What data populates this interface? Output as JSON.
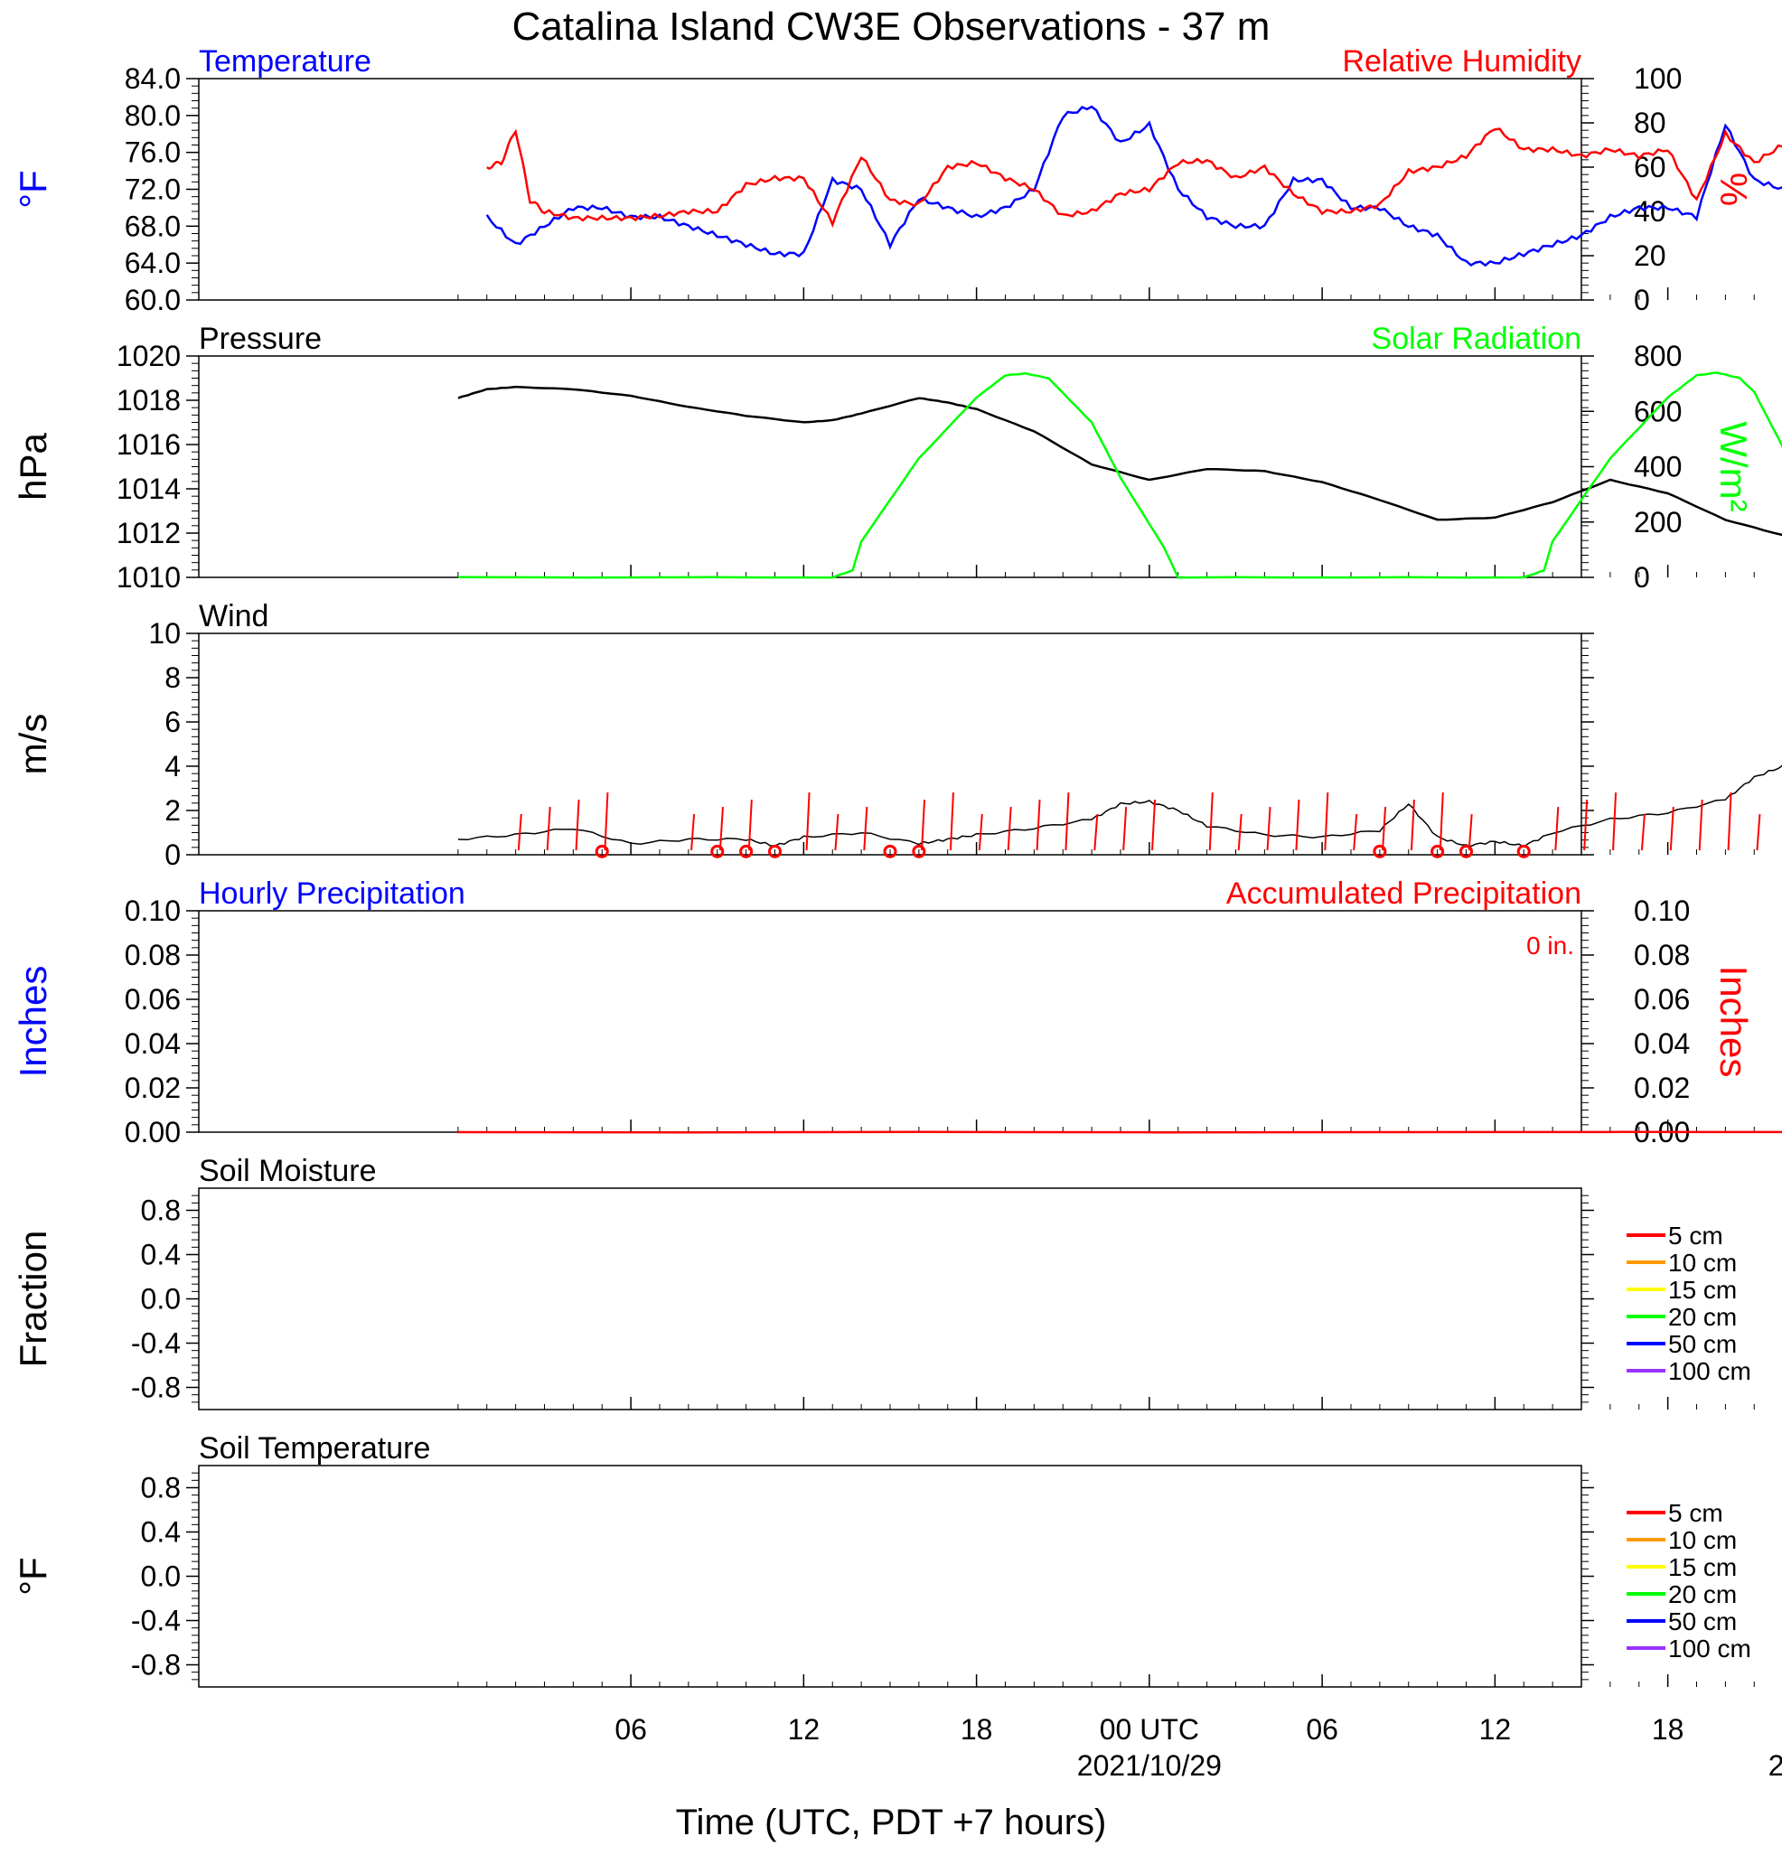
{
  "title": "Catalina Island CW3E Observations - 37 m",
  "x_axis": {
    "title": "Time (UTC, PDT +7 hours)",
    "range_hours": [
      -9,
      39
    ],
    "ticks": [
      {
        "h": 6,
        "label": "06",
        "date": ""
      },
      {
        "h": 12,
        "label": "12",
        "date": ""
      },
      {
        "h": 18,
        "label": "18",
        "date": ""
      },
      {
        "h": 24,
        "label": "00 UTC",
        "date": "2021/10/29"
      },
      {
        "h": 30,
        "label": "06",
        "date": ""
      },
      {
        "h": 36,
        "label": "12",
        "date": ""
      },
      {
        "h": 42,
        "label": "18",
        "date": ""
      },
      {
        "h": 48,
        "label": "00 UTC",
        "date": "2021/10/30"
      }
    ]
  },
  "colors": {
    "blue": "#0000ff",
    "red": "#ff0000",
    "green": "#00ff00",
    "black": "#000000"
  },
  "soil_legend": [
    {
      "label": "5 cm",
      "color": "#ff0000"
    },
    {
      "label": "10 cm",
      "color": "#ff9900"
    },
    {
      "label": "15 cm",
      "color": "#ffff00"
    },
    {
      "label": "20 cm",
      "color": "#00ff00"
    },
    {
      "label": "50 cm",
      "color": "#0000ff"
    },
    {
      "label": "100 cm",
      "color": "#9933ff"
    }
  ],
  "chart_data": [
    {
      "type": "line",
      "title_left": "Temperature",
      "title_right": "Relative Humidity",
      "ylabel_left": "°F",
      "ylabel_right": "%",
      "ylim_left": [
        60,
        84
      ],
      "ylim_right": [
        0,
        100
      ],
      "yticks_left": [
        "60.0",
        "64.0",
        "68.0",
        "72.0",
        "76.0",
        "80.0",
        "84.0"
      ],
      "yticks_right": [
        "0",
        "20",
        "40",
        "60",
        "80",
        "100"
      ],
      "series": [
        {
          "axis": "left",
          "color": "#0000ff",
          "x": [
            1,
            2,
            3,
            4,
            5,
            6,
            7,
            8,
            9,
            10,
            11,
            12,
            13,
            14,
            15,
            16,
            17,
            18,
            19,
            20,
            21,
            22,
            23,
            24,
            25,
            26,
            27,
            28,
            29,
            30,
            31,
            32,
            33,
            34,
            35,
            36,
            37,
            38,
            39,
            40,
            41,
            42,
            43,
            44,
            45,
            46,
            47,
            48,
            48.5
          ],
          "y": [
            69,
            66,
            68,
            70,
            70,
            69,
            69,
            68,
            67,
            66,
            65,
            65,
            73,
            72,
            66,
            71,
            70,
            69,
            70,
            72,
            80,
            81,
            77,
            79,
            72,
            69,
            68,
            68,
            73,
            73,
            70,
            70,
            68,
            67,
            64,
            64,
            65,
            66,
            67,
            69,
            70,
            70,
            69,
            79,
            73,
            72,
            68,
            67,
            62
          ]
        },
        {
          "axis": "right",
          "color": "#ff0000",
          "x": [
            1,
            1.5,
            2,
            2.5,
            3,
            4,
            5,
            6,
            7,
            8,
            9,
            10,
            11,
            12,
            13,
            14,
            15,
            16,
            17,
            18,
            19,
            20,
            21,
            22,
            23,
            24,
            25,
            26,
            27,
            28,
            29,
            30,
            31,
            32,
            33,
            34,
            35,
            36,
            37,
            38,
            39,
            40,
            41,
            42,
            43,
            44,
            45,
            46,
            47,
            48,
            48.5
          ],
          "y": [
            60,
            62,
            77,
            45,
            40,
            37,
            37,
            37,
            38,
            40,
            40,
            52,
            55,
            55,
            35,
            65,
            45,
            43,
            60,
            62,
            55,
            50,
            38,
            40,
            48,
            50,
            62,
            63,
            55,
            60,
            48,
            40,
            40,
            43,
            58,
            60,
            65,
            78,
            68,
            68,
            65,
            68,
            65,
            68,
            45,
            75,
            62,
            70,
            75,
            80,
            90
          ]
        }
      ]
    },
    {
      "type": "line",
      "title_left": "Pressure",
      "title_right": "Solar Radiation",
      "ylabel_left": "hPa",
      "ylabel_right": "W/m²",
      "ylim_left": [
        1010,
        1020
      ],
      "ylim_right": [
        0,
        800
      ],
      "yticks_left": [
        "1010",
        "1012",
        "1014",
        "1016",
        "1018",
        "1020"
      ],
      "yticks_right": [
        "0",
        "200",
        "400",
        "600",
        "800"
      ],
      "series": [
        {
          "axis": "left",
          "color": "#000000",
          "x": [
            0,
            1,
            2,
            4,
            6,
            8,
            10,
            12,
            13,
            14,
            16,
            17,
            18,
            20,
            22,
            24,
            26,
            28,
            30,
            32,
            34,
            36,
            38,
            40,
            42,
            44,
            46,
            47,
            48
          ],
          "y": [
            1018.1,
            1018.5,
            1018.6,
            1018.5,
            1018.2,
            1017.7,
            1017.3,
            1017.0,
            1017.1,
            1017.4,
            1018.1,
            1017.9,
            1017.6,
            1016.6,
            1015.1,
            1014.4,
            1014.9,
            1014.8,
            1014.3,
            1013.5,
            1012.6,
            1012.7,
            1013.4,
            1014.4,
            1013.8,
            1012.6,
            1011.9,
            1011.5,
            1011.9
          ]
        },
        {
          "axis": "right",
          "color": "#00ff00",
          "x": [
            0,
            13,
            13.7,
            14,
            16,
            18,
            19,
            19.7,
            20.5,
            22,
            23,
            24.5,
            25,
            37,
            37.7,
            38,
            40,
            42,
            43,
            43.7,
            44.5,
            45,
            46.2,
            46.3,
            46.5,
            47,
            48,
            48.5
          ],
          "y": [
            0,
            0,
            25,
            130,
            430,
            650,
            730,
            737,
            720,
            560,
            360,
            110,
            0,
            0,
            25,
            130,
            430,
            650,
            730,
            740,
            720,
            670,
            430,
            270,
            420,
            330,
            150,
            0
          ]
        }
      ]
    },
    {
      "type": "line",
      "title_left": "Wind",
      "ylabel_left": "m/s",
      "ylim_left": [
        0,
        10
      ],
      "yticks_left": [
        "0",
        "2",
        "4",
        "6",
        "8",
        "10"
      ],
      "series": [
        {
          "axis": "left",
          "color": "#000000",
          "x": [
            0,
            2,
            4,
            6,
            8,
            10,
            11,
            12,
            14,
            16,
            17,
            18,
            20,
            22,
            23,
            24,
            25,
            26,
            28,
            30,
            32,
            33,
            34,
            35,
            36,
            37,
            38,
            40,
            42,
            44,
            45,
            46,
            47,
            48
          ],
          "y": [
            0.7,
            0.9,
            1.2,
            0.5,
            0.7,
            0.7,
            0.4,
            0.8,
            1.0,
            0.5,
            0.7,
            0.9,
            1.2,
            1.6,
            2.3,
            2.4,
            2.0,
            1.3,
            0.9,
            0.8,
            1.1,
            2.3,
            0.8,
            0.4,
            0.6,
            0.4,
            1.0,
            1.6,
            1.9,
            2.5,
            3.5,
            4.0,
            2.9,
            2.6
          ]
        }
      ],
      "barbs_hours": [
        2,
        3,
        4,
        5,
        8,
        9,
        10,
        12,
        13,
        14,
        16,
        17,
        18,
        19,
        20,
        21,
        22,
        23,
        24,
        26,
        27,
        28,
        29,
        30,
        31,
        32,
        33,
        34,
        35,
        38,
        39,
        40,
        41,
        42,
        43,
        44,
        45,
        46,
        47
      ],
      "calm_hours": [
        5,
        9,
        10,
        11,
        15,
        16,
        32,
        34,
        35,
        37
      ]
    },
    {
      "type": "line",
      "title_left": "Hourly Precipitation",
      "title_right": "Accumulated Precipitation",
      "annotation": "0 in.",
      "ylabel_left": "Inches",
      "ylabel_right": "Inches",
      "ylim_left": [
        0,
        0.1
      ],
      "ylim_right": [
        0,
        0.1
      ],
      "yticks_left": [
        "0.00",
        "0.02",
        "0.04",
        "0.06",
        "0.08",
        "0.10"
      ],
      "yticks_right": [
        "0.00",
        "0.02",
        "0.04",
        "0.06",
        "0.08",
        "0.10"
      ],
      "series": [
        {
          "axis": "right",
          "color": "#ff0000",
          "x": [
            0,
            48.5
          ],
          "y": [
            0,
            0
          ]
        }
      ]
    },
    {
      "type": "line",
      "title_left": "Soil Moisture",
      "ylabel_left": "Fraction",
      "ylim_left": [
        -1,
        1
      ],
      "yticks_left": [
        "-0.8",
        "-0.4",
        "0.0",
        "0.4",
        "0.8"
      ],
      "series": []
    },
    {
      "type": "line",
      "title_left": "Soil Temperature",
      "ylabel_left": "°F",
      "ylim_left": [
        -1,
        1
      ],
      "yticks_left": [
        "-0.8",
        "-0.4",
        "0.0",
        "0.4",
        "0.8"
      ],
      "series": []
    }
  ]
}
